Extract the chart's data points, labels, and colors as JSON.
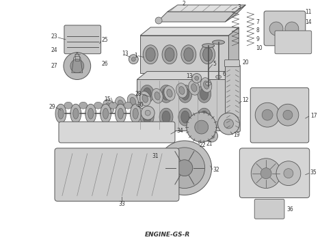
{
  "footer_label": "ENGINE-GS-R",
  "background_color": "#ffffff",
  "fig_width": 4.9,
  "fig_height": 3.6,
  "dpi": 100,
  "line_color": "#555555",
  "light_gray": "#aaaaaa",
  "mid_gray": "#888888",
  "part_fill": "#d8d8d8",
  "dark_fill": "#999999"
}
